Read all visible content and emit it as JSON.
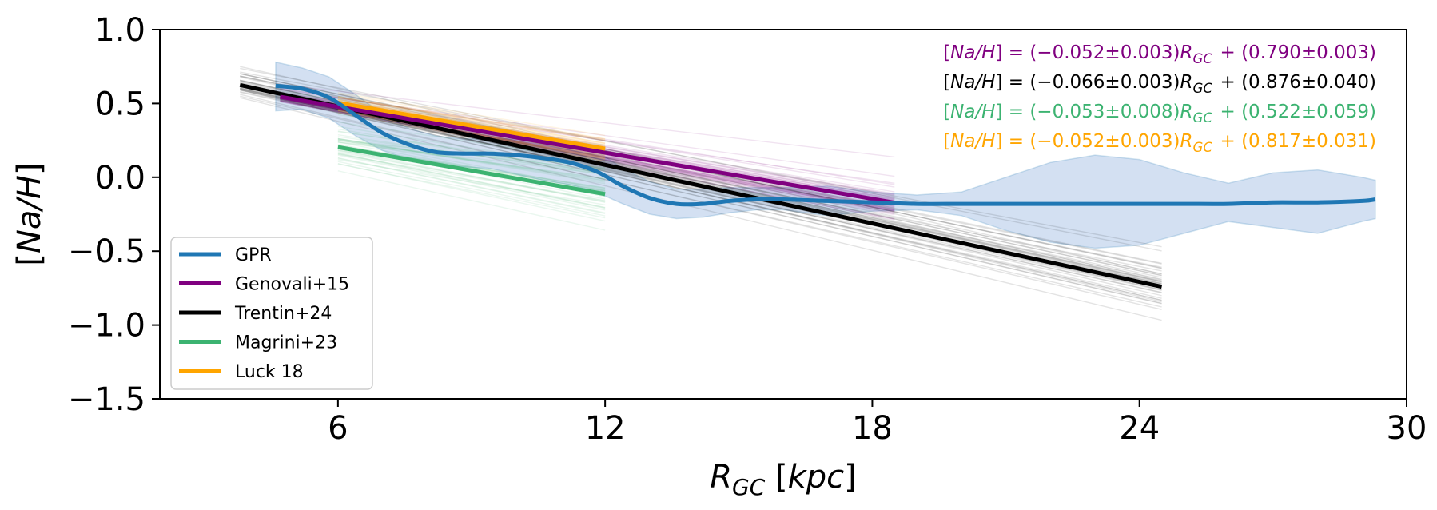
{
  "chart_data": {
    "type": "line",
    "xlabel": "R_GC [kpc]",
    "ylabel": "[Na/H]",
    "xlim": [
      2,
      30
    ],
    "ylim": [
      -1.5,
      1.0
    ],
    "xticks": [
      6,
      12,
      18,
      24,
      30
    ],
    "xtick_labels": [
      "6",
      "12",
      "18",
      "24",
      "30"
    ],
    "yticks": [
      -1.5,
      -1.0,
      -0.5,
      0.0,
      0.5,
      1.0
    ],
    "ytick_labels": [
      "−1.5",
      "−1.0",
      "−0.5",
      "0.0",
      "0.5",
      "1.0"
    ],
    "legend_position": "lower-left",
    "series": [
      {
        "name": "GPR",
        "color": "#1f77b4",
        "band_color": "#aec7e8",
        "x": [
          4.6,
          5.2,
          5.8,
          6.4,
          7.0,
          7.6,
          8.2,
          8.8,
          9.4,
          10.0,
          10.6,
          11.2,
          11.8,
          12.4,
          13.0,
          13.6,
          14.2,
          14.8,
          15.4,
          16.0,
          17.0,
          18.0,
          19.0,
          20.0,
          21.0,
          22.0,
          23.0,
          24.0,
          25.0,
          26.0,
          27.0,
          28.0,
          29.0,
          29.3
        ],
        "y": [
          0.62,
          0.6,
          0.54,
          0.42,
          0.3,
          0.22,
          0.17,
          0.16,
          0.16,
          0.15,
          0.13,
          0.1,
          0.04,
          -0.06,
          -0.14,
          -0.18,
          -0.18,
          -0.16,
          -0.15,
          -0.15,
          -0.16,
          -0.17,
          -0.18,
          -0.18,
          -0.18,
          -0.18,
          -0.18,
          -0.18,
          -0.18,
          -0.18,
          -0.17,
          -0.17,
          -0.16,
          -0.15
        ],
        "lower": [
          0.45,
          0.46,
          0.4,
          0.28,
          0.18,
          0.12,
          0.08,
          0.07,
          0.06,
          0.02,
          -0.02,
          -0.05,
          -0.1,
          -0.18,
          -0.25,
          -0.28,
          -0.27,
          -0.24,
          -0.22,
          -0.22,
          -0.26,
          -0.23,
          -0.22,
          -0.26,
          -0.36,
          -0.44,
          -0.48,
          -0.46,
          -0.38,
          -0.3,
          -0.34,
          -0.38,
          -0.3,
          -0.28
        ],
        "upper": [
          0.78,
          0.74,
          0.68,
          0.56,
          0.43,
          0.33,
          0.28,
          0.26,
          0.26,
          0.26,
          0.26,
          0.24,
          0.18,
          0.06,
          -0.03,
          -0.08,
          -0.08,
          -0.07,
          -0.07,
          -0.07,
          -0.06,
          -0.1,
          -0.12,
          -0.1,
          0.0,
          0.1,
          0.15,
          0.12,
          0.03,
          -0.04,
          0.03,
          0.05,
          0.0,
          -0.02
        ]
      },
      {
        "name": "Genovali+15",
        "color": "#800080",
        "x": [
          4.7,
          18.5
        ],
        "slope": -0.052,
        "intercept": 0.79,
        "slope_err": 0.003,
        "intercept_err": 0.003
      },
      {
        "name": "Trentin+24",
        "color": "#000000",
        "x": [
          3.8,
          24.5
        ],
        "slope": -0.066,
        "intercept": 0.876,
        "slope_err": 0.003,
        "intercept_err": 0.04
      },
      {
        "name": "Magrini+23",
        "color": "#3cb371",
        "x": [
          6.0,
          12.0
        ],
        "slope": -0.053,
        "intercept": 0.522,
        "slope_err": 0.008,
        "intercept_err": 0.059
      },
      {
        "name": "Luck 18",
        "color": "#ffa500",
        "x": [
          6.0,
          12.0
        ],
        "slope": -0.052,
        "intercept": 0.817,
        "slope_err": 0.003,
        "intercept_err": 0.031
      }
    ],
    "annotations": [
      {
        "text": "[Na/H] = (−0.052±0.003)R_GC + (0.790±0.003)",
        "color": "#800080"
      },
      {
        "text": "[Na/H] = (−0.066±0.003)R_GC + (0.876±0.040)",
        "color": "#000000"
      },
      {
        "text": "[Na/H] = (−0.053±0.008)R_GC + (0.522±0.059)",
        "color": "#3cb371"
      },
      {
        "text": "[Na/H] = (−0.052±0.003)R_GC + (0.817±0.031)",
        "color": "#ffa500"
      }
    ]
  }
}
